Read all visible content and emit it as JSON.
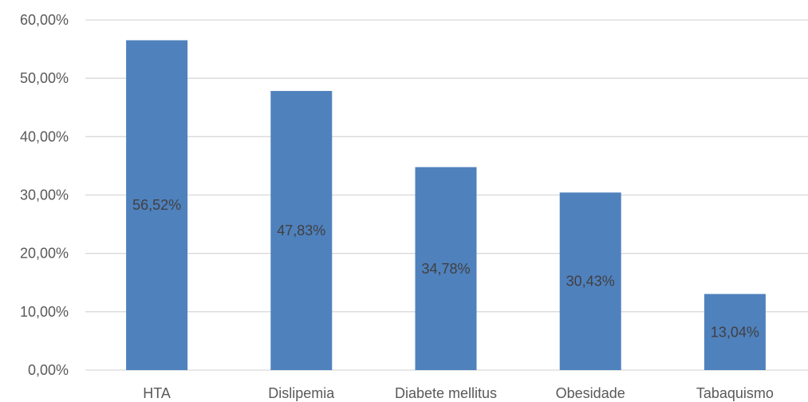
{
  "chart_data": {
    "type": "bar",
    "categories": [
      "HTA",
      "Dislipemia",
      "Diabete mellitus",
      "Obesidade",
      "Tabaquismo"
    ],
    "values": [
      56.52,
      47.83,
      34.78,
      30.43,
      13.04
    ],
    "data_labels": [
      "56,52%",
      "47,83%",
      "34,78%",
      "30,43%",
      "13,04%"
    ],
    "yticks": [
      "0,00%",
      "10,00%",
      "20,00%",
      "30,00%",
      "40,00%",
      "50,00%",
      "60,00%"
    ],
    "ylim": [
      0,
      60
    ],
    "grid": true,
    "legend": "none",
    "colors": {
      "bar": "#4F81BD",
      "grid": "#D9D9D9",
      "axis": "#D9D9D9"
    }
  }
}
